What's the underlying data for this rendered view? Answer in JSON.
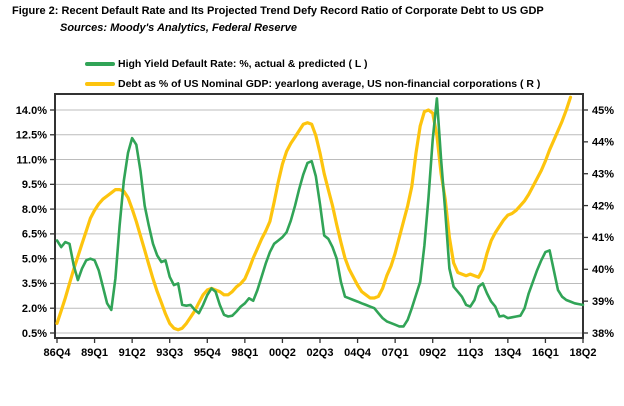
{
  "title": "Figure 2: Recent Default Rate and Its Projected Trend Defy Record Ratio of Corporate Debt to US GDP",
  "subtitle": "Sources: Moody's Analytics, Federal Reserve",
  "colors": {
    "green": "#31a457",
    "gold": "#fdc40e",
    "grid": "#bcbcbc",
    "border": "#333333",
    "text": "#000000"
  },
  "legend": [
    {
      "label": "High Yield Default Rate: %, actual & predicted ( L )",
      "color": "#31a457"
    },
    {
      "label": "Debt as % of US Nominal GDP: yearlong average, US non-financial corporations ( R )",
      "color": "#fdc40e"
    }
  ],
  "chart_data": {
    "type": "line",
    "title": "Figure 2: Recent Default Rate and Its Projected Trend Defy Record Ratio of Corporate Debt to US GDP",
    "sources": "Sources: Moody's Analytics, Federal Reserve",
    "grid": "horizontal-only",
    "x_start_quarter": "86Q4",
    "x_end_quarter": "18Q2",
    "x_tick_labels": [
      "86Q4",
      "89Q1",
      "91Q2",
      "93Q3",
      "95Q4",
      "98Q1",
      "00Q2",
      "02Q3",
      "04Q4",
      "07Q1",
      "09Q2",
      "11Q3",
      "13Q4",
      "16Q1",
      "18Q2"
    ],
    "x_quarters_per_tick": 9,
    "left_axis": {
      "min": 0.5,
      "max": 14.0,
      "tick_labels": [
        "14.0%",
        "12.5%",
        "11.0%",
        "9.5%",
        "8.0%",
        "6.5%",
        "5.0%",
        "3.5%",
        "2.0%",
        "0.5%"
      ],
      "tick_values": [
        14.0,
        12.5,
        11.0,
        9.5,
        8.0,
        6.5,
        5.0,
        3.5,
        2.0,
        0.5
      ]
    },
    "right_axis": {
      "min": 38,
      "max": 45,
      "tick_labels": [
        "45%",
        "44%",
        "43%",
        "42%",
        "41%",
        "40%",
        "39%",
        "38%"
      ],
      "tick_values": [
        45,
        44,
        43,
        42,
        41,
        40,
        39,
        38
      ]
    },
    "series": [
      {
        "name": "High Yield Default Rate: %, actual & predicted ( L )",
        "axis": "left",
        "color": "#31a457",
        "width": 2.6,
        "start": "86Q4",
        "values": [
          6.1,
          5.7,
          6.0,
          5.9,
          4.6,
          3.7,
          4.4,
          4.9,
          5.0,
          4.9,
          4.3,
          3.3,
          2.3,
          1.9,
          3.8,
          7.0,
          9.7,
          11.4,
          12.3,
          11.9,
          10.3,
          8.2,
          7.0,
          5.9,
          5.2,
          4.8,
          4.9,
          3.9,
          3.4,
          3.5,
          2.2,
          2.15,
          2.2,
          1.9,
          1.7,
          2.2,
          2.8,
          3.2,
          3.0,
          2.2,
          1.6,
          1.5,
          1.55,
          1.8,
          2.1,
          2.3,
          2.6,
          2.45,
          3.1,
          3.9,
          4.7,
          5.4,
          5.9,
          6.1,
          6.3,
          6.6,
          7.3,
          8.2,
          9.2,
          10.1,
          10.8,
          10.9,
          10.0,
          8.3,
          6.4,
          6.2,
          5.7,
          5.0,
          3.6,
          2.7,
          2.6,
          2.5,
          2.4,
          2.3,
          2.2,
          2.1,
          2.0,
          1.7,
          1.4,
          1.2,
          1.1,
          1.0,
          0.9,
          0.9,
          1.3,
          2.0,
          2.8,
          3.6,
          5.8,
          8.7,
          12.2,
          14.7,
          11.0,
          7.9,
          4.4,
          3.3,
          3.0,
          2.7,
          2.2,
          2.1,
          2.5,
          3.3,
          3.5,
          2.9,
          2.4,
          2.1,
          1.5,
          1.55,
          1.4,
          1.45,
          1.5,
          1.55,
          2.0,
          2.9,
          3.6,
          4.3,
          4.9,
          5.4,
          5.5,
          4.3,
          3.1,
          2.7,
          2.5,
          2.4,
          2.3,
          2.25,
          2.2
        ]
      },
      {
        "name": "Debt as % of US Nominal GDP: yearlong average, US non-financial corporations ( R )",
        "axis": "right",
        "color": "#fdc40e",
        "width": 3.2,
        "start": "86Q4",
        "values": [
          38.3,
          38.7,
          39.1,
          39.55,
          40.0,
          40.4,
          40.8,
          41.2,
          41.6,
          41.85,
          42.05,
          42.2,
          42.3,
          42.4,
          42.5,
          42.5,
          42.45,
          42.25,
          41.9,
          41.5,
          41.05,
          40.6,
          40.15,
          39.7,
          39.3,
          38.95,
          38.6,
          38.3,
          38.15,
          38.1,
          38.15,
          38.3,
          38.5,
          38.7,
          38.95,
          39.2,
          39.35,
          39.4,
          39.35,
          39.3,
          39.2,
          39.2,
          39.3,
          39.45,
          39.55,
          39.7,
          40.0,
          40.35,
          40.65,
          40.95,
          41.2,
          41.5,
          42.1,
          42.75,
          43.3,
          43.7,
          43.95,
          44.15,
          44.35,
          44.55,
          44.6,
          44.55,
          44.2,
          43.65,
          43.0,
          42.5,
          42.0,
          41.4,
          40.85,
          40.35,
          40.0,
          39.75,
          39.5,
          39.3,
          39.2,
          39.1,
          39.1,
          39.15,
          39.4,
          39.8,
          40.1,
          40.5,
          41.0,
          41.5,
          42.0,
          42.6,
          43.65,
          44.5,
          44.95,
          45.0,
          44.9,
          44.2,
          43.0,
          42.2,
          41.0,
          40.2,
          39.9,
          39.85,
          39.8,
          39.85,
          39.8,
          39.75,
          40.0,
          40.5,
          40.9,
          41.15,
          41.35,
          41.55,
          41.7,
          41.75,
          41.85,
          42.0,
          42.15,
          42.35,
          42.6,
          42.85,
          43.1,
          43.4,
          43.75,
          44.05,
          44.35,
          44.65,
          45.0,
          45.4
        ]
      }
    ]
  }
}
